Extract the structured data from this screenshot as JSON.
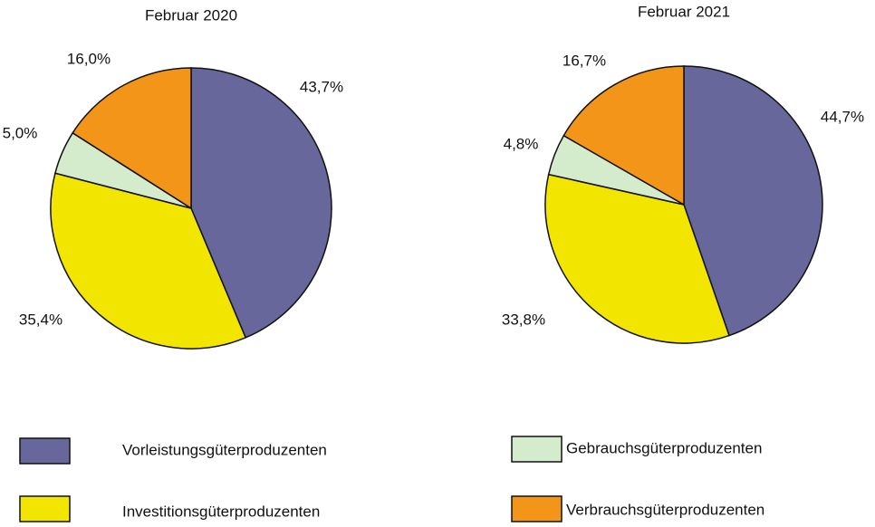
{
  "chart_data": [
    {
      "type": "pie",
      "title": "Februar 2020",
      "values": [
        43.7,
        35.4,
        5.0,
        16.0
      ],
      "value_labels": [
        "43,7%",
        "35,4%",
        "5,0%",
        "16,0%"
      ]
    },
    {
      "type": "pie",
      "title": "Februar 2021",
      "values": [
        44.7,
        33.8,
        4.8,
        16.7
      ],
      "value_labels": [
        "44,7%",
        "33,8%",
        "4,8%",
        "16,7%"
      ]
    }
  ],
  "legend": [
    {
      "name": "Vorleistungsgüterproduzenten",
      "color": "#67679b"
    },
    {
      "name": "Investitionsgüterproduzenten",
      "color": "#f2e600"
    },
    {
      "name": "Gebrauchsgüterproduzenten",
      "color": "#d4ebcc"
    },
    {
      "name": "Verbrauchsgüterproduzenten",
      "color": "#f39519"
    }
  ]
}
